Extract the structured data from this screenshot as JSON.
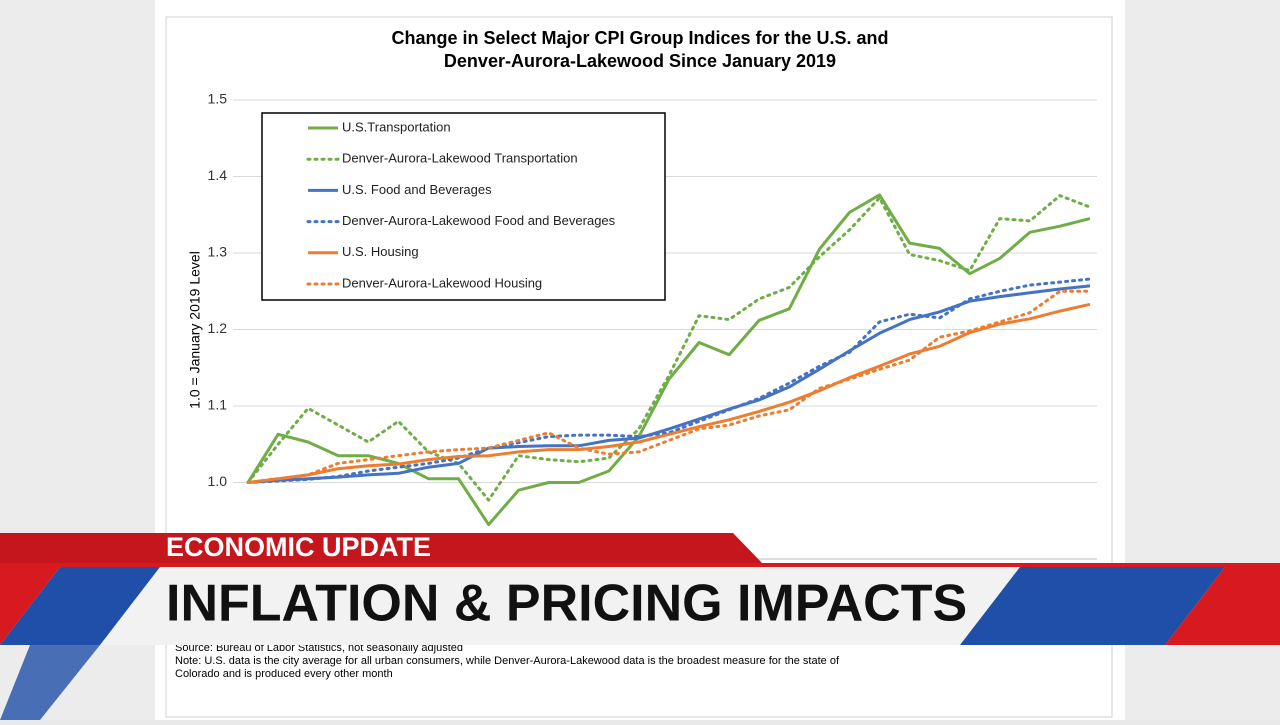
{
  "chart_data": {
    "type": "line",
    "title": [
      "Change in Select Major CPI Group Indices for the U.S. and",
      "Denver-Aurora-Lakewood Since January 2019"
    ],
    "y_label": "1.0 = January 2019 Level",
    "categories": [
      null,
      null,
      null,
      null,
      null,
      null,
      null,
      null,
      null,
      null,
      null,
      null,
      null,
      null,
      null,
      null,
      null,
      null,
      null,
      null,
      null,
      null,
      null,
      null,
      null,
      null,
      null,
      null,
      null
    ],
    "ylim": [
      0.9,
      1.5
    ],
    "yticks": [
      {
        "value": 1,
        "label": "1.0"
      },
      {
        "value": 1.1,
        "label": "1.1"
      },
      {
        "value": 1.2,
        "label": "1.2"
      },
      {
        "value": 1.3,
        "label": "1.3"
      },
      {
        "value": 1.4,
        "label": "1.4"
      },
      {
        "value": 1.5,
        "label": "1.5"
      }
    ],
    "grid": true,
    "legend": "top-left",
    "series": [
      {
        "name": "U.S.Transportation",
        "color": "#70ad47",
        "style": "solid",
        "values": [
          1.0,
          1.063,
          1.053,
          1.035,
          1.035,
          1.025,
          1.005,
          1.005,
          0.945,
          0.99,
          1.0,
          1.0,
          1.015,
          1.06,
          1.135,
          1.183,
          1.167,
          1.212,
          1.227,
          1.305,
          1.353,
          1.376,
          1.313,
          1.306,
          1.273,
          1.293,
          1.327,
          1.335,
          1.345
        ]
      },
      {
        "name": "Denver-Aurora-Lakewood Transportation",
        "color": "#70ad47",
        "style": "dotted",
        "values": [
          1.0,
          1.05,
          1.097,
          1.075,
          1.053,
          1.08,
          1.04,
          1.025,
          0.977,
          1.035,
          1.03,
          1.027,
          1.032,
          1.07,
          1.14,
          1.218,
          1.213,
          1.24,
          1.255,
          1.295,
          1.33,
          1.372,
          1.298,
          1.29,
          1.277,
          1.345,
          1.342,
          1.375,
          1.36
        ]
      },
      {
        "name": "U.S. Food and Beverages",
        "color": "#4472c4",
        "style": "solid",
        "values": [
          1.0,
          1.003,
          1.005,
          1.007,
          1.01,
          1.012,
          1.02,
          1.025,
          1.045,
          1.047,
          1.048,
          1.048,
          1.055,
          1.058,
          1.07,
          1.083,
          1.096,
          1.108,
          1.125,
          1.148,
          1.172,
          1.195,
          1.213,
          1.223,
          1.237,
          1.243,
          1.248,
          1.253,
          1.257
        ]
      },
      {
        "name": "Denver-Aurora-Lakewood Food and Beverages",
        "color": "#4472c4",
        "style": "dotted",
        "values": [
          1.0,
          1.002,
          1.004,
          1.008,
          1.015,
          1.02,
          1.025,
          1.032,
          1.045,
          1.052,
          1.06,
          1.062,
          1.062,
          1.06,
          1.065,
          1.08,
          1.095,
          1.11,
          1.13,
          1.152,
          1.17,
          1.21,
          1.22,
          1.215,
          1.24,
          1.25,
          1.258,
          1.262,
          1.266
        ]
      },
      {
        "name": "U.S. Housing",
        "color": "#ed7d31",
        "style": "solid",
        "values": [
          1.0,
          1.005,
          1.01,
          1.018,
          1.022,
          1.024,
          1.03,
          1.034,
          1.035,
          1.04,
          1.043,
          1.043,
          1.047,
          1.053,
          1.063,
          1.073,
          1.082,
          1.093,
          1.105,
          1.12,
          1.137,
          1.152,
          1.168,
          1.178,
          1.196,
          1.207,
          1.214,
          1.224,
          1.233
        ]
      },
      {
        "name": "Denver-Aurora-Lakewood Housing",
        "color": "#ed7d31",
        "style": "dotted",
        "values": [
          1.0,
          1.005,
          1.01,
          1.025,
          1.03,
          1.035,
          1.04,
          1.043,
          1.045,
          1.055,
          1.065,
          1.045,
          1.037,
          1.04,
          1.055,
          1.07,
          1.075,
          1.087,
          1.095,
          1.123,
          1.135,
          1.148,
          1.16,
          1.19,
          1.198,
          1.21,
          1.222,
          1.25,
          1.25
        ]
      }
    ],
    "source": [
      "Source: Bureau of Labor Statistics, not seasonally adjusted",
      "Note: U.S. data is the city average for all urban consumers, while Denver-Aurora-Lakewood data is the broadest measure for the state of",
      "Colorado and is produced every other month"
    ]
  },
  "banner": {
    "kicker": "ECONOMIC UPDATE",
    "headline": "INFLATION & PRICING IMPACTS"
  }
}
